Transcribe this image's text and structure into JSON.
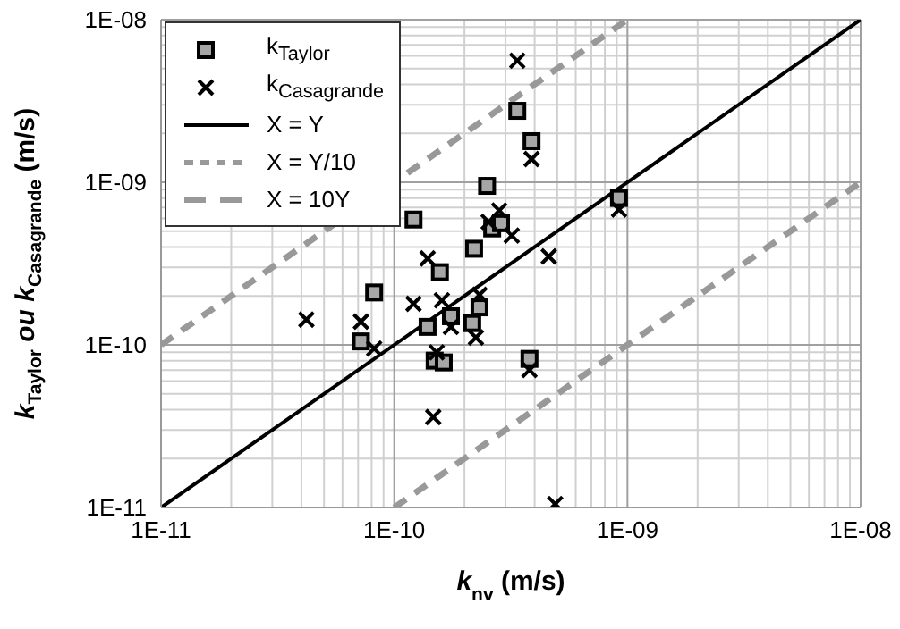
{
  "chart_data": {
    "type": "scatter",
    "xlabel": "k$_{nv}$ (m/s)",
    "ylabel": "k$_{Taylor}$ ou k$_{Casagrande}$ (m/s)",
    "log": "xy",
    "grid": true,
    "legend": "top left",
    "xlim": [
      1e-11,
      1e-08
    ],
    "ylim": [
      1e-11,
      1e-08
    ],
    "xticks": [
      {
        "value": 1e-11,
        "label": "1E-11"
      },
      {
        "value": 1e-10,
        "label": "1E-10"
      },
      {
        "value": 1e-09,
        "label": "1E-09"
      },
      {
        "value": 1e-08,
        "label": "1E-08"
      }
    ],
    "yticks": [
      {
        "value": 1e-11,
        "label": "1E-11"
      },
      {
        "value": 1e-10,
        "label": "1E-10"
      },
      {
        "value": 1e-09,
        "label": "1E-09"
      },
      {
        "value": 1e-08,
        "label": "1E-08"
      }
    ],
    "series": [
      {
        "name": "k$_{Taylor}$",
        "marker": "square",
        "color": "#a6a6a6",
        "x": [
          7.2e-11,
          8.2e-11,
          1.21e-10,
          1.39e-10,
          1.49e-10,
          1.63e-10,
          1.57e-10,
          1.75e-10,
          2.16e-10,
          2.32e-10,
          2.2e-10,
          2.5e-10,
          2.63e-10,
          2.87e-10,
          3.37e-10,
          3.88e-10,
          3.8e-10,
          9.2e-10
        ],
        "values": [
          1.05e-10,
          2.1e-10,
          5.9e-10,
          1.29e-10,
          8e-11,
          7.8e-11,
          2.8e-10,
          1.5e-10,
          1.36e-10,
          1.7e-10,
          3.9e-10,
          9.5e-10,
          5.2e-10,
          5.6e-10,
          2.75e-09,
          1.79e-09,
          8.2e-11,
          8e-10
        ]
      },
      {
        "name": "k$_{Casagrande}$",
        "marker": "cross",
        "color": "#000000",
        "x": [
          4.2e-11,
          7.2e-11,
          8.2e-11,
          1.21e-10,
          1.39e-10,
          1.6e-10,
          1.75e-10,
          1.52e-10,
          1.47e-10,
          2.24e-10,
          2.32e-10,
          2.54e-10,
          2.82e-10,
          3.19e-10,
          3.37e-10,
          3.88e-10,
          3.8e-10,
          4.6e-10,
          4.9e-10,
          9.2e-10
        ],
        "values": [
          1.43e-10,
          1.39e-10,
          9.5e-11,
          1.79e-10,
          3.4e-10,
          1.88e-10,
          1.29e-10,
          9e-11,
          3.6e-11,
          1.11e-10,
          2.03e-10,
          5.7e-10,
          6.7e-10,
          4.7e-10,
          5.6e-09,
          1.39e-09,
          7e-11,
          3.5e-10,
          1.05e-11,
          6.8e-10
        ]
      },
      {
        "name": "X = Y",
        "type": "line",
        "line_style": "solid",
        "color": "#000000",
        "x": [
          1e-11,
          1e-08
        ],
        "values": [
          1e-11,
          1e-08
        ]
      },
      {
        "name": "X = Y/10",
        "type": "line",
        "line_style": "dashed",
        "color": "#999999",
        "x": [
          1e-11,
          1e-09
        ],
        "values": [
          1e-10,
          1e-08
        ]
      },
      {
        "name": "X = 10Y",
        "type": "line",
        "line_style": "dashed",
        "color": "#999999",
        "x": [
          1e-10,
          1e-08
        ],
        "values": [
          1e-11,
          1e-09
        ]
      }
    ]
  }
}
